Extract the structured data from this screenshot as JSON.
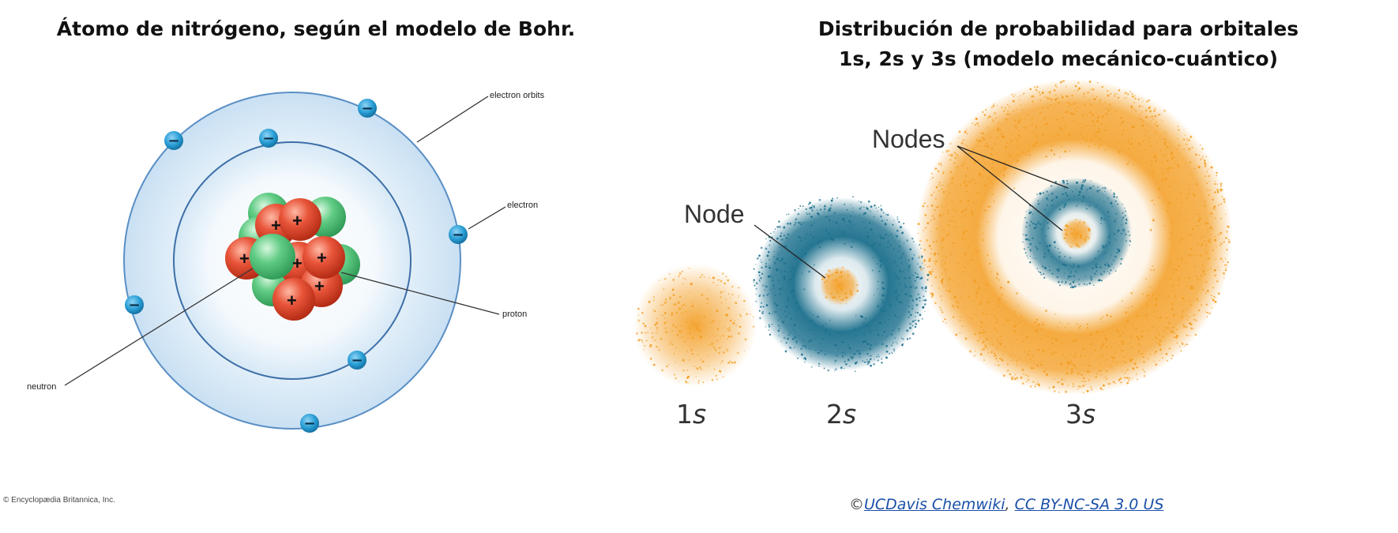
{
  "left_panel": {
    "title": "Átomo de nitrógeno, según el modelo de Bohr.",
    "labels": {
      "electron_orbits": "electron orbits",
      "electron": "electron",
      "proton": "proton",
      "neutron": "neutron"
    },
    "electron_symbol": "−",
    "proton_symbol": "+",
    "credit": "© Encyclopædia Britannica, Inc."
  },
  "right_panel": {
    "title_line1": "Distribución de probabilidad para orbitales",
    "title_line2": "1s, 2s y 3s (modelo mecánico-cuántico)",
    "node_label": "Node",
    "nodes_label": "Nodes",
    "orbitals": [
      {
        "number": "1",
        "letter": "s"
      },
      {
        "number": "2",
        "letter": "s"
      },
      {
        "number": "3",
        "letter": "s"
      }
    ],
    "credit_prefix": "©",
    "credit_link1": "UCDavis Chemwiki",
    "credit_sep": ", ",
    "credit_link2": "CC BY-NC-SA 3.0 US"
  },
  "colors": {
    "orange": "#f39c1f",
    "teal": "#1b6f8c",
    "proton_red": "#e0452b",
    "neutron_green": "#55c27a",
    "electron_blue": "#2a9fd6",
    "orbit_fill": "#d3e7f6"
  }
}
